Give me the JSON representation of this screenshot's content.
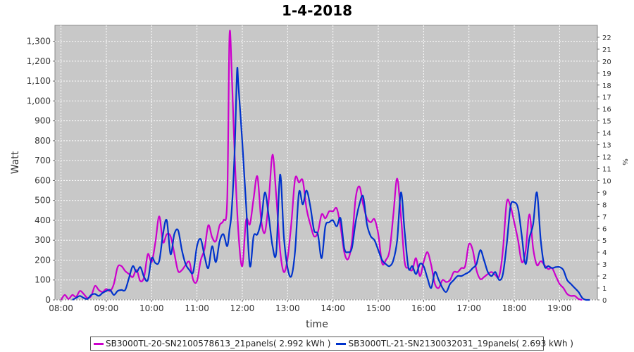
{
  "chart_data": {
    "type": "line",
    "title": "1-4-2018",
    "xlabel": "time",
    "ylabel": "Watt",
    "y2label": "%",
    "xlim": [
      "07:52",
      "19:50"
    ],
    "ylim": [
      0,
      1380
    ],
    "y2lim": [
      0,
      23
    ],
    "grid": true,
    "legend_position": "bottom",
    "x_ticks": [
      "08:00",
      "09:00",
      "10:00",
      "11:00",
      "12:00",
      "13:00",
      "14:00",
      "15:00",
      "16:00",
      "17:00",
      "18:00",
      "19:00"
    ],
    "y_ticks": [
      "0",
      "100",
      "200",
      "300",
      "400",
      "500",
      "600",
      "700",
      "800",
      "900",
      "1,000",
      "1,100",
      "1,200",
      "1,300"
    ],
    "y2_ticks": [
      "0",
      "1",
      "2",
      "3",
      "4",
      "5",
      "6",
      "7",
      "8",
      "9",
      "10",
      "11",
      "12",
      "13",
      "14",
      "15",
      "16",
      "17",
      "18",
      "19",
      "20",
      "21",
      "22"
    ],
    "series": [
      {
        "name": "SB3000TL-20-SN2100578613_21panels( 2.992 kWh )",
        "color": "#cc00cc",
        "points": [
          [
            "08:00",
            0
          ],
          [
            "08:05",
            25
          ],
          [
            "08:10",
            5
          ],
          [
            "08:15",
            25
          ],
          [
            "08:20",
            15
          ],
          [
            "08:25",
            45
          ],
          [
            "08:30",
            30
          ],
          [
            "08:35",
            10
          ],
          [
            "08:40",
            20
          ],
          [
            "08:45",
            70
          ],
          [
            "08:50",
            50
          ],
          [
            "08:55",
            40
          ],
          [
            "09:00",
            55
          ],
          [
            "09:05",
            45
          ],
          [
            "09:10",
            80
          ],
          [
            "09:15",
            165
          ],
          [
            "09:20",
            170
          ],
          [
            "09:25",
            145
          ],
          [
            "09:30",
            130
          ],
          [
            "09:35",
            115
          ],
          [
            "09:40",
            150
          ],
          [
            "09:45",
            95
          ],
          [
            "09:50",
            115
          ],
          [
            "09:55",
            230
          ],
          [
            "10:00",
            190
          ],
          [
            "10:05",
            290
          ],
          [
            "10:10",
            420
          ],
          [
            "10:15",
            290
          ],
          [
            "10:20",
            330
          ],
          [
            "10:25",
            320
          ],
          [
            "10:30",
            235
          ],
          [
            "10:35",
            145
          ],
          [
            "10:40",
            150
          ],
          [
            "10:45",
            175
          ],
          [
            "10:50",
            190
          ],
          [
            "10:55",
            100
          ],
          [
            "11:00",
            95
          ],
          [
            "11:05",
            200
          ],
          [
            "11:10",
            255
          ],
          [
            "11:15",
            375
          ],
          [
            "11:20",
            315
          ],
          [
            "11:25",
            295
          ],
          [
            "11:30",
            375
          ],
          [
            "11:35",
            400
          ],
          [
            "11:40",
            500
          ],
          [
            "11:43",
            1320
          ],
          [
            "11:46",
            1150
          ],
          [
            "11:50",
            720
          ],
          [
            "11:55",
            330
          ],
          [
            "12:00",
            170
          ],
          [
            "12:05",
            400
          ],
          [
            "12:10",
            380
          ],
          [
            "12:15",
            510
          ],
          [
            "12:20",
            620
          ],
          [
            "12:25",
            400
          ],
          [
            "12:30",
            340
          ],
          [
            "12:35",
            500
          ],
          [
            "12:40",
            730
          ],
          [
            "12:45",
            520
          ],
          [
            "12:50",
            250
          ],
          [
            "12:55",
            140
          ],
          [
            "13:00",
            210
          ],
          [
            "13:05",
            390
          ],
          [
            "13:10",
            610
          ],
          [
            "13:15",
            590
          ],
          [
            "13:20",
            600
          ],
          [
            "13:25",
            460
          ],
          [
            "13:30",
            380
          ],
          [
            "13:35",
            320
          ],
          [
            "13:40",
            340
          ],
          [
            "13:45",
            430
          ],
          [
            "13:50",
            410
          ],
          [
            "13:55",
            445
          ],
          [
            "14:00",
            445
          ],
          [
            "14:05",
            460
          ],
          [
            "14:10",
            370
          ],
          [
            "14:15",
            240
          ],
          [
            "14:20",
            205
          ],
          [
            "14:25",
            290
          ],
          [
            "14:30",
            510
          ],
          [
            "14:35",
            570
          ],
          [
            "14:40",
            480
          ],
          [
            "14:45",
            410
          ],
          [
            "14:50",
            390
          ],
          [
            "14:55",
            405
          ],
          [
            "15:00",
            330
          ],
          [
            "15:05",
            185
          ],
          [
            "15:10",
            200
          ],
          [
            "15:15",
            250
          ],
          [
            "15:20",
            430
          ],
          [
            "15:25",
            610
          ],
          [
            "15:30",
            420
          ],
          [
            "15:35",
            190
          ],
          [
            "15:40",
            160
          ],
          [
            "15:45",
            150
          ],
          [
            "15:50",
            210
          ],
          [
            "15:55",
            120
          ],
          [
            "16:00",
            190
          ],
          [
            "16:05",
            240
          ],
          [
            "16:10",
            175
          ],
          [
            "16:15",
            80
          ],
          [
            "16:20",
            60
          ],
          [
            "16:25",
            100
          ],
          [
            "16:30",
            90
          ],
          [
            "16:35",
            100
          ],
          [
            "16:40",
            140
          ],
          [
            "16:45",
            140
          ],
          [
            "16:50",
            160
          ],
          [
            "16:55",
            170
          ],
          [
            "17:00",
            280
          ],
          [
            "17:05",
            250
          ],
          [
            "17:10",
            150
          ],
          [
            "17:15",
            105
          ],
          [
            "17:20",
            115
          ],
          [
            "17:25",
            130
          ],
          [
            "17:30",
            140
          ],
          [
            "17:35",
            125
          ],
          [
            "17:40",
            120
          ],
          [
            "17:45",
            250
          ],
          [
            "17:50",
            490
          ],
          [
            "17:55",
            470
          ],
          [
            "18:00",
            390
          ],
          [
            "18:05",
            300
          ],
          [
            "18:10",
            190
          ],
          [
            "18:15",
            245
          ],
          [
            "18:20",
            430
          ],
          [
            "18:25",
            260
          ],
          [
            "18:30",
            175
          ],
          [
            "18:35",
            195
          ],
          [
            "18:40",
            175
          ],
          [
            "18:45",
            155
          ],
          [
            "18:50",
            160
          ],
          [
            "18:55",
            120
          ],
          [
            "19:00",
            80
          ],
          [
            "19:05",
            60
          ],
          [
            "19:10",
            30
          ],
          [
            "19:15",
            20
          ],
          [
            "19:20",
            20
          ],
          [
            "19:25",
            5
          ],
          [
            "19:30",
            0
          ]
        ]
      },
      {
        "name": "SB3000TL-21-SN2130032031_19panels( 2.693 kWh )",
        "color": "#0033cc",
        "points": [
          [
            "08:15",
            0
          ],
          [
            "08:20",
            10
          ],
          [
            "08:25",
            20
          ],
          [
            "08:30",
            10
          ],
          [
            "08:35",
            5
          ],
          [
            "08:40",
            25
          ],
          [
            "08:45",
            30
          ],
          [
            "08:50",
            20
          ],
          [
            "08:55",
            35
          ],
          [
            "09:00",
            45
          ],
          [
            "09:05",
            50
          ],
          [
            "09:10",
            25
          ],
          [
            "09:15",
            45
          ],
          [
            "09:20",
            50
          ],
          [
            "09:25",
            50
          ],
          [
            "09:30",
            110
          ],
          [
            "09:35",
            170
          ],
          [
            "09:40",
            140
          ],
          [
            "09:45",
            165
          ],
          [
            "09:50",
            115
          ],
          [
            "09:55",
            100
          ],
          [
            "10:00",
            210
          ],
          [
            "10:05",
            185
          ],
          [
            "10:10",
            195
          ],
          [
            "10:15",
            330
          ],
          [
            "10:20",
            400
          ],
          [
            "10:25",
            230
          ],
          [
            "10:30",
            330
          ],
          [
            "10:35",
            350
          ],
          [
            "10:40",
            250
          ],
          [
            "10:45",
            180
          ],
          [
            "10:50",
            150
          ],
          [
            "10:55",
            140
          ],
          [
            "11:00",
            270
          ],
          [
            "11:05",
            305
          ],
          [
            "11:10",
            220
          ],
          [
            "11:15",
            160
          ],
          [
            "11:20",
            270
          ],
          [
            "11:25",
            190
          ],
          [
            "11:30",
            295
          ],
          [
            "11:35",
            330
          ],
          [
            "11:40",
            270
          ],
          [
            "11:43",
            350
          ],
          [
            "11:46",
            450
          ],
          [
            "11:50",
            760
          ],
          [
            "11:53",
            1150
          ],
          [
            "11:55",
            1070
          ],
          [
            "12:00",
            790
          ],
          [
            "12:05",
            480
          ],
          [
            "12:10",
            170
          ],
          [
            "12:15",
            320
          ],
          [
            "12:20",
            330
          ],
          [
            "12:25",
            400
          ],
          [
            "12:30",
            540
          ],
          [
            "12:35",
            420
          ],
          [
            "12:40",
            270
          ],
          [
            "12:45",
            240
          ],
          [
            "12:50",
            630
          ],
          [
            "12:55",
            320
          ],
          [
            "13:00",
            160
          ],
          [
            "13:05",
            120
          ],
          [
            "13:10",
            250
          ],
          [
            "13:15",
            540
          ],
          [
            "13:20",
            480
          ],
          [
            "13:25",
            550
          ],
          [
            "13:30",
            470
          ],
          [
            "13:35",
            350
          ],
          [
            "13:40",
            330
          ],
          [
            "13:45",
            210
          ],
          [
            "13:50",
            370
          ],
          [
            "13:55",
            390
          ],
          [
            "14:00",
            400
          ],
          [
            "14:05",
            370
          ],
          [
            "14:10",
            410
          ],
          [
            "14:15",
            260
          ],
          [
            "14:20",
            240
          ],
          [
            "14:25",
            260
          ],
          [
            "14:30",
            390
          ],
          [
            "14:35",
            480
          ],
          [
            "14:40",
            520
          ],
          [
            "14:45",
            380
          ],
          [
            "14:50",
            320
          ],
          [
            "14:55",
            300
          ],
          [
            "15:00",
            250
          ],
          [
            "15:05",
            200
          ],
          [
            "15:10",
            180
          ],
          [
            "15:15",
            170
          ],
          [
            "15:20",
            200
          ],
          [
            "15:25",
            300
          ],
          [
            "15:30",
            540
          ],
          [
            "15:35",
            340
          ],
          [
            "15:40",
            160
          ],
          [
            "15:45",
            170
          ],
          [
            "15:50",
            130
          ],
          [
            "15:55",
            180
          ],
          [
            "16:00",
            170
          ],
          [
            "16:05",
            110
          ],
          [
            "16:10",
            60
          ],
          [
            "16:15",
            140
          ],
          [
            "16:20",
            100
          ],
          [
            "16:25",
            60
          ],
          [
            "16:30",
            40
          ],
          [
            "16:35",
            80
          ],
          [
            "16:40",
            100
          ],
          [
            "16:45",
            120
          ],
          [
            "16:50",
            120
          ],
          [
            "16:55",
            130
          ],
          [
            "17:00",
            140
          ],
          [
            "17:05",
            160
          ],
          [
            "17:10",
            180
          ],
          [
            "17:15",
            250
          ],
          [
            "17:20",
            200
          ],
          [
            "17:25",
            140
          ],
          [
            "17:30",
            120
          ],
          [
            "17:35",
            140
          ],
          [
            "17:40",
            100
          ],
          [
            "17:45",
            130
          ],
          [
            "17:50",
            280
          ],
          [
            "17:55",
            470
          ],
          [
            "18:00",
            490
          ],
          [
            "18:05",
            460
          ],
          [
            "18:10",
            320
          ],
          [
            "18:15",
            180
          ],
          [
            "18:20",
            310
          ],
          [
            "18:25",
            380
          ],
          [
            "18:30",
            540
          ],
          [
            "18:35",
            300
          ],
          [
            "18:40",
            170
          ],
          [
            "18:45",
            170
          ],
          [
            "18:50",
            160
          ],
          [
            "18:55",
            165
          ],
          [
            "19:00",
            165
          ],
          [
            "19:05",
            150
          ],
          [
            "19:10",
            100
          ],
          [
            "19:15",
            80
          ],
          [
            "19:20",
            60
          ],
          [
            "19:25",
            40
          ],
          [
            "19:30",
            10
          ],
          [
            "19:35",
            0
          ],
          [
            "19:40",
            0
          ]
        ]
      }
    ]
  }
}
